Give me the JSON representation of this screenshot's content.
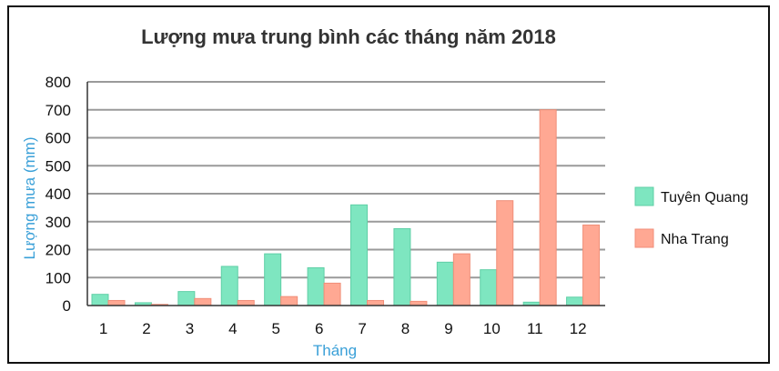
{
  "chart_data": {
    "type": "bar",
    "title": "Lượng mưa trung bình các tháng năm 2018",
    "xlabel": "Tháng",
    "ylabel": "Lượng mưa (mm)",
    "ylim": [
      0,
      800
    ],
    "yticks": [
      0,
      100,
      200,
      300,
      400,
      500,
      600,
      700,
      800
    ],
    "categories": [
      "1",
      "2",
      "3",
      "4",
      "5",
      "6",
      "7",
      "8",
      "9",
      "10",
      "11",
      "12"
    ],
    "grid": true,
    "legend_position": "right",
    "series": [
      {
        "name": "Tuyên Quang",
        "color": "#7ee6c0",
        "values": [
          40,
          10,
          50,
          140,
          185,
          135,
          360,
          275,
          155,
          128,
          12,
          30
        ]
      },
      {
        "name": "Nha Trang",
        "color": "#ffa893",
        "values": [
          18,
          4,
          25,
          18,
          32,
          80,
          18,
          15,
          185,
          375,
          700,
          288
        ]
      }
    ],
    "axis_title_color": "#3aa0d8"
  }
}
